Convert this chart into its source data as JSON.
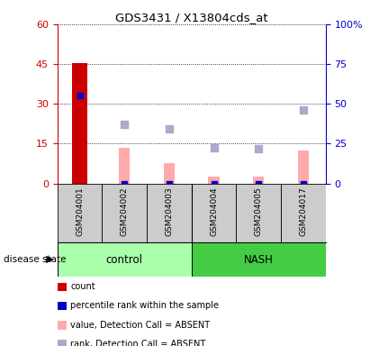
{
  "title": "GDS3431 / X13804cds_at",
  "samples": [
    "GSM204001",
    "GSM204002",
    "GSM204003",
    "GSM204004",
    "GSM204005",
    "GSM204017"
  ],
  "count_values": [
    45.5,
    0,
    0,
    0,
    0,
    0
  ],
  "percentile_values": [
    55.0,
    0,
    0,
    0,
    0,
    0
  ],
  "value_absent": [
    0,
    13.5,
    7.5,
    2.5,
    2.5,
    12.5
  ],
  "rank_absent": [
    0,
    37.0,
    34.0,
    22.5,
    22.0,
    46.0
  ],
  "ylim_left": [
    0,
    60
  ],
  "ylim_right": [
    0,
    100
  ],
  "yticks_left": [
    0,
    15,
    30,
    45,
    60
  ],
  "yticks_right": [
    0,
    25,
    50,
    75,
    100
  ],
  "ytick_labels_left": [
    "0",
    "15",
    "30",
    "45",
    "60"
  ],
  "ytick_labels_right": [
    "0",
    "25",
    "50",
    "75",
    "100%"
  ],
  "left_axis_color": "#cc0000",
  "right_axis_color": "#0000cc",
  "color_count": "#cc0000",
  "color_percentile": "#0000cc",
  "color_value_absent": "#ffaaaa",
  "color_rank_absent": "#aaaacc",
  "group_control_color": "#aaffaa",
  "group_nash_color": "#44cc44",
  "sample_bg_color": "#cccccc",
  "legend_items": [
    {
      "label": "count",
      "color": "#cc0000",
      "marker": "s"
    },
    {
      "label": "percentile rank within the sample",
      "color": "#0000cc",
      "marker": "s"
    },
    {
      "label": "value, Detection Call = ABSENT",
      "color": "#ffaaaa",
      "marker": "s"
    },
    {
      "label": "rank, Detection Call = ABSENT",
      "color": "#aaaacc",
      "marker": "s"
    }
  ]
}
